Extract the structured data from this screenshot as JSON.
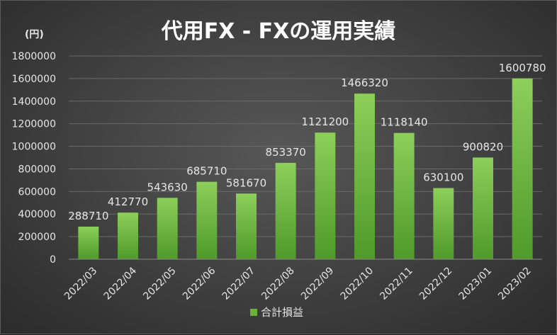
{
  "chart_data": {
    "type": "bar",
    "title": "代用FX - FXの運用実績",
    "unit_label": "(円)",
    "categories": [
      "2022/03",
      "2022/04",
      "2022/05",
      "2022/06",
      "2022/07",
      "2022/08",
      "2022/09",
      "2022/10",
      "2022/11",
      "2022/12",
      "2023/01",
      "2023/02"
    ],
    "series": [
      {
        "name": "合計損益",
        "values": [
          288710,
          412770,
          543630,
          685710,
          581670,
          853370,
          1121200,
          1466320,
          1118140,
          630100,
          900820,
          1600780
        ],
        "color": "#6ab33b"
      }
    ],
    "ylim": [
      0,
      1800000
    ],
    "yticks": [
      0,
      200000,
      400000,
      600000,
      800000,
      1000000,
      1200000,
      1400000,
      1600000,
      1800000
    ],
    "grid": true,
    "legend_position": "bottom"
  },
  "colors": {
    "bar_top": "#8dcf5a",
    "bar_bottom": "#4f9a2a"
  }
}
